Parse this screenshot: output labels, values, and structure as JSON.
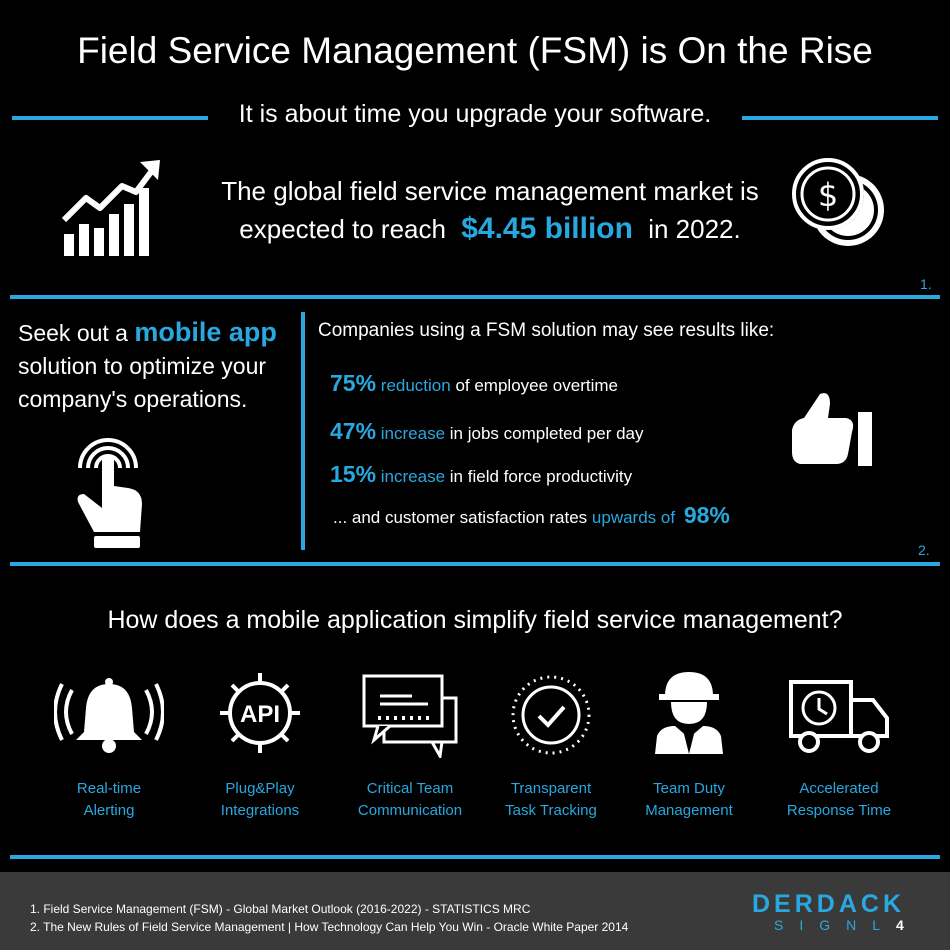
{
  "header": {
    "title": "Field Service Management (FSM) is On the Rise",
    "subtitle": "It is about time you upgrade your software."
  },
  "market": {
    "line1": "The global field service management market is",
    "line2_pre": "expected to reach",
    "amount": "$4.45 billion",
    "line2_post": "in 2022.",
    "footnote": "1."
  },
  "mobile": {
    "pre": "Seek out a",
    "highlight": "mobile app",
    "line2": "solution to optimize your",
    "line3": "company's operations."
  },
  "results": {
    "intro": "Companies using a FSM solution may see results like:",
    "stats": [
      {
        "pct": "75%",
        "kw": "reduction",
        "rest": "of employee overtime"
      },
      {
        "pct": "47%",
        "kw": "increase",
        "rest": "in jobs completed per day"
      },
      {
        "pct": "15%",
        "kw": "increase",
        "rest": "in field force productivity"
      }
    ],
    "satisfaction_pre": "... and customer satisfaction rates",
    "satisfaction_kw": "upwards of",
    "satisfaction_pct": "98%",
    "footnote": "2."
  },
  "question": "How does a mobile application simplify field service management?",
  "features": [
    {
      "icon": "bell-icon",
      "line1": "Real-time",
      "line2": "Alerting"
    },
    {
      "icon": "api-gear-icon",
      "line1": "Plug&Play",
      "line2": "Integrations"
    },
    {
      "icon": "chat-bubbles-icon",
      "line1": "Critical Team",
      "line2": "Communication"
    },
    {
      "icon": "check-circle-icon",
      "line1": "Transparent",
      "line2": "Task Tracking"
    },
    {
      "icon": "worker-icon",
      "line1": "Team Duty",
      "line2": "Management"
    },
    {
      "icon": "delivery-truck-icon",
      "line1": "Accelerated",
      "line2": "Response Time"
    }
  ],
  "icons": {
    "growth": "growth-chart-icon",
    "coins": "coins-icon",
    "touch": "touch-hand-icon",
    "thumbs": "thumbs-up-icon",
    "api_text": "API"
  },
  "references": [
    "1. Field Service Management (FSM) - Global Market Outlook (2016-2022) - STATISTICS MRC",
    "2. The New Rules of Field Service Management | How Technology Can Help You Win  - Oracle White Paper 2014"
  ],
  "logo": {
    "word": "DERDACK",
    "sub_letters": "SIGNL",
    "sub_num": "4"
  },
  "colors": {
    "accent": "#29a8e0",
    "background": "#000000",
    "footer": "#3a3a3a"
  }
}
